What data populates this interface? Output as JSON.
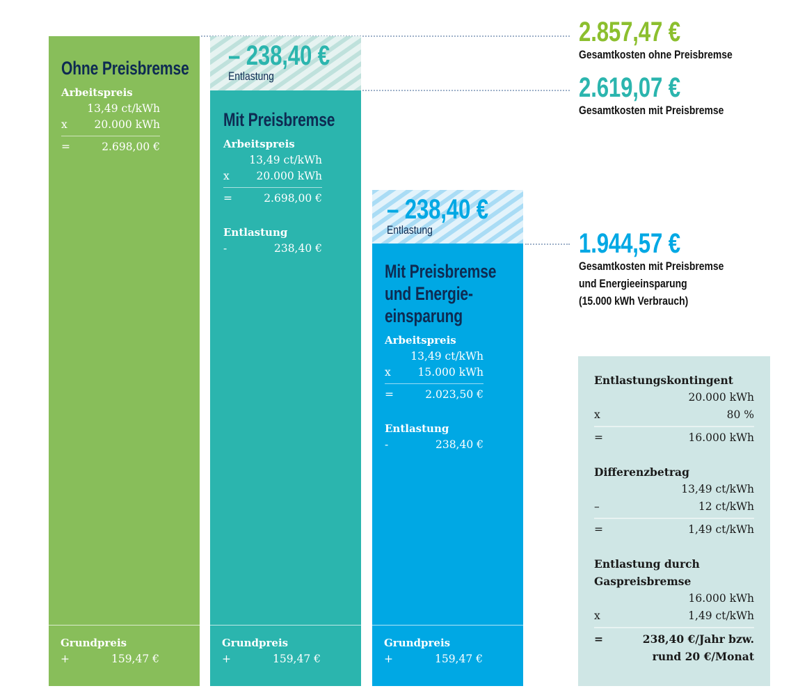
{
  "colors": {
    "green": "#88be5a",
    "teal": "#2bb5ae",
    "blue": "#00a8e4",
    "navy": "#0e2b52",
    "total_green": "#8cbf2e",
    "box": "#cfe6e5"
  },
  "columns": [
    {
      "title": "Ohne Preisbremse",
      "arbeitspreis_label": "Arbeitspreis",
      "price": "13,49 ct/kWh",
      "op_x": "x",
      "usage": "20.000 kWh",
      "op_eq": "=",
      "result": "2.698,00 €",
      "grundpreis_label": "Grundpreis",
      "op_plus": "+",
      "grundpreis": "159,47 €"
    },
    {
      "relief_amount": "– 238,40 €",
      "relief_label": "Entlastung",
      "title": "Mit Preisbremse",
      "arbeitspreis_label": "Arbeitspreis",
      "price": "13,49 ct/kWh",
      "op_x": "x",
      "usage": "20.000 kWh",
      "op_eq": "=",
      "result": "2.698,00 €",
      "entlastung_label": "Entlastung",
      "op_minus": "-",
      "entlastung": "238,40 €",
      "grundpreis_label": "Grundpreis",
      "op_plus": "+",
      "grundpreis": "159,47 €"
    },
    {
      "relief_amount": "– 238,40 €",
      "relief_label": "Entlastung",
      "title_lines": [
        "Mit Preisbremse",
        "und Energie-",
        "einsparung"
      ],
      "arbeitspreis_label": "Arbeitspreis",
      "price": "13,49 ct/kWh",
      "op_x": "x",
      "usage": "15.000 kWh",
      "op_eq": "=",
      "result": "2.023,50 €",
      "entlastung_label": "Entlastung",
      "op_minus": "-",
      "entlastung": "238,40 €",
      "grundpreis_label": "Grundpreis",
      "op_plus": "+",
      "grundpreis": "159,47 €"
    }
  ],
  "totals": [
    {
      "amount": "2.857,47 €",
      "label_lines": [
        "Gesamtkosten ohne Preisbremse"
      ]
    },
    {
      "amount": "2.619,07 €",
      "label_lines": [
        "Gesamtkosten mit Preisbremse"
      ]
    },
    {
      "amount": "1.944,57 €",
      "label_lines": [
        "Gesamtkosten mit Preisbremse",
        "und Energieeinsparung",
        "(15.000 kWh Verbrauch)"
      ]
    }
  ],
  "calc_box": {
    "kontingent": {
      "label": "Entlastungskontingent",
      "v1": "20.000 kWh",
      "op1": "x",
      "v2": "80 %",
      "op_eq": "=",
      "result": "16.000 kWh"
    },
    "differenz": {
      "label": "Differenzbetrag",
      "v1": "13,49 ct/kWh",
      "op1": "–",
      "v2": "12 ct/kWh",
      "op_eq": "=",
      "result": "1,49 ct/kWh"
    },
    "entlastung": {
      "label_lines": [
        "Entlastung durch",
        "Gaspreisbremse"
      ],
      "v1": "16.000 kWh",
      "op1": "x",
      "v2": "1,49 ct/kWh",
      "op_eq": "=",
      "result_lines": [
        "238,40 €/Jahr bzw.",
        "rund 20 €/Monat"
      ]
    }
  }
}
